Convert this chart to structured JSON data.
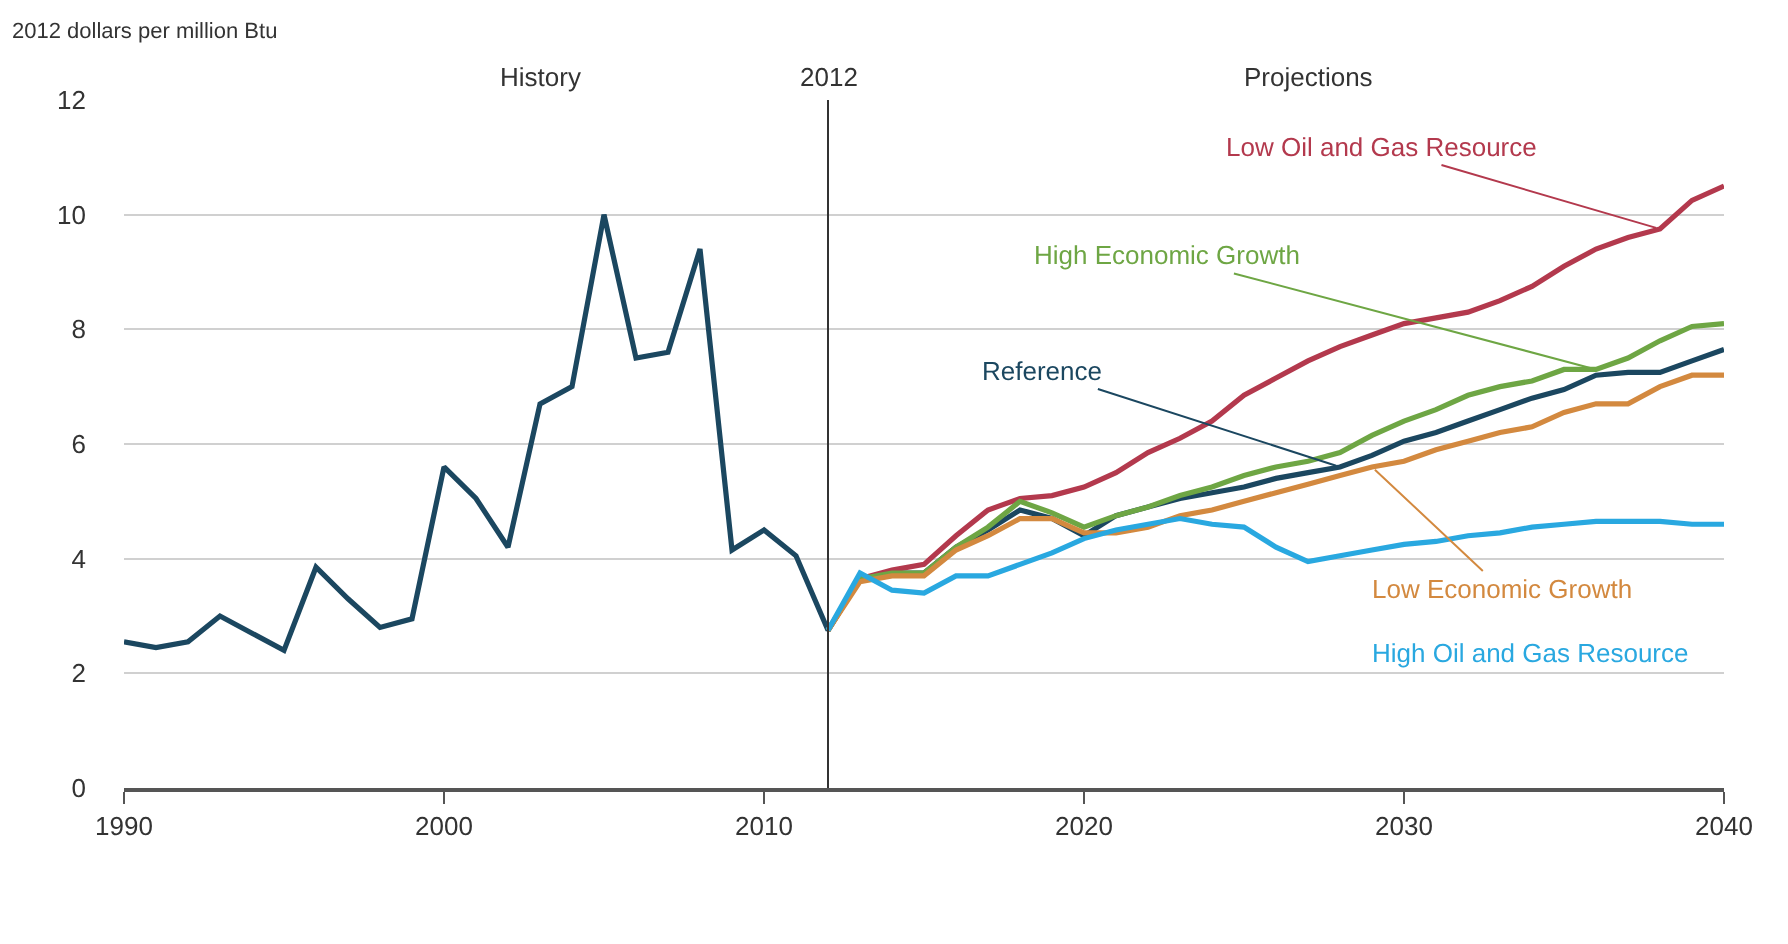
{
  "chart_data": {
    "type": "line",
    "ylabel": "2012 dollars per million Btu",
    "annotations": [
      "History",
      "Projections"
    ],
    "xlim": [
      1990,
      2040
    ],
    "xticks": [
      1990,
      2000,
      2010,
      2020,
      2030,
      2040
    ],
    "ylim": [
      0,
      12
    ],
    "yticks": [
      0,
      2,
      4,
      6,
      8,
      10,
      12
    ],
    "grid": "y",
    "legend": false,
    "marker": "none",
    "line_style": "solid",
    "ref_lines": [
      {
        "axis": "x",
        "value": 2012,
        "label": "2012",
        "color": "#333333"
      }
    ],
    "series": [
      {
        "name": "Reference",
        "color": "#1b4760",
        "x": [
          1990,
          1991,
          1992,
          1993,
          1994,
          1995,
          1996,
          1997,
          1998,
          1999,
          2000,
          2001,
          2002,
          2003,
          2004,
          2005,
          2006,
          2007,
          2008,
          2009,
          2010,
          2011,
          2012,
          2013,
          2014,
          2015,
          2016,
          2017,
          2018,
          2019,
          2020,
          2021,
          2022,
          2023,
          2024,
          2025,
          2026,
          2027,
          2028,
          2029,
          2030,
          2031,
          2032,
          2033,
          2034,
          2035,
          2036,
          2037,
          2038,
          2039,
          2040
        ],
        "values": [
          2.55,
          2.45,
          2.55,
          3.0,
          2.7,
          2.4,
          3.85,
          3.3,
          2.8,
          2.95,
          5.6,
          5.05,
          4.2,
          6.7,
          7.0,
          10.0,
          7.5,
          7.6,
          9.4,
          4.15,
          4.5,
          4.05,
          2.75,
          3.65,
          3.75,
          3.75,
          4.2,
          4.5,
          4.85,
          4.7,
          4.4,
          4.75,
          4.9,
          5.05,
          5.15,
          5.25,
          5.4,
          5.5,
          5.6,
          5.8,
          6.05,
          6.2,
          6.4,
          6.6,
          6.8,
          6.95,
          7.2,
          7.25,
          7.25,
          7.45,
          7.65
        ]
      },
      {
        "name": "Low Oil and Gas Resource",
        "color": "#b3394d",
        "x": [
          2012,
          2013,
          2014,
          2015,
          2016,
          2017,
          2018,
          2019,
          2020,
          2021,
          2022,
          2023,
          2024,
          2025,
          2026,
          2027,
          2028,
          2029,
          2030,
          2031,
          2032,
          2033,
          2034,
          2035,
          2036,
          2037,
          2038,
          2039,
          2040
        ],
        "values": [
          2.75,
          3.65,
          3.8,
          3.9,
          4.4,
          4.85,
          5.05,
          5.1,
          5.25,
          5.5,
          5.85,
          6.1,
          6.4,
          6.85,
          7.15,
          7.45,
          7.7,
          7.9,
          8.1,
          8.2,
          8.3,
          8.5,
          8.75,
          9.1,
          9.4,
          9.6,
          9.75,
          10.25,
          10.5
        ]
      },
      {
        "name": "High Economic Growth",
        "color": "#6ea644",
        "x": [
          2012,
          2013,
          2014,
          2015,
          2016,
          2017,
          2018,
          2019,
          2020,
          2021,
          2022,
          2023,
          2024,
          2025,
          2026,
          2027,
          2028,
          2029,
          2030,
          2031,
          2032,
          2033,
          2034,
          2035,
          2036,
          2037,
          2038,
          2039,
          2040
        ],
        "values": [
          2.75,
          3.65,
          3.75,
          3.75,
          4.2,
          4.55,
          5.0,
          4.8,
          4.55,
          4.75,
          4.9,
          5.1,
          5.25,
          5.45,
          5.6,
          5.7,
          5.85,
          6.15,
          6.4,
          6.6,
          6.85,
          7.0,
          7.1,
          7.3,
          7.3,
          7.5,
          7.8,
          8.05,
          8.1
        ]
      },
      {
        "name": "Low Economic Growth",
        "color": "#d3893f",
        "x": [
          2012,
          2013,
          2014,
          2015,
          2016,
          2017,
          2018,
          2019,
          2020,
          2021,
          2022,
          2023,
          2024,
          2025,
          2026,
          2027,
          2028,
          2029,
          2030,
          2031,
          2032,
          2033,
          2034,
          2035,
          2036,
          2037,
          2038,
          2039,
          2040
        ],
        "values": [
          2.75,
          3.6,
          3.7,
          3.7,
          4.15,
          4.4,
          4.7,
          4.7,
          4.45,
          4.45,
          4.55,
          4.75,
          4.85,
          5.0,
          5.15,
          5.3,
          5.45,
          5.6,
          5.7,
          5.9,
          6.05,
          6.2,
          6.3,
          6.55,
          6.7,
          6.7,
          7.0,
          7.2,
          7.2
        ]
      },
      {
        "name": "High Oil and Gas Resource",
        "color": "#29a8e0",
        "x": [
          2012,
          2013,
          2014,
          2015,
          2016,
          2017,
          2018,
          2019,
          2020,
          2021,
          2022,
          2023,
          2024,
          2025,
          2026,
          2027,
          2028,
          2029,
          2030,
          2031,
          2032,
          2033,
          2034,
          2035,
          2036,
          2037,
          2038,
          2039,
          2040
        ],
        "values": [
          2.75,
          3.75,
          3.45,
          3.4,
          3.7,
          3.7,
          3.9,
          4.1,
          4.35,
          4.5,
          4.6,
          4.7,
          4.6,
          4.55,
          4.2,
          3.95,
          4.05,
          4.15,
          4.25,
          4.3,
          4.4,
          4.45,
          4.55,
          4.6,
          4.65,
          4.65,
          4.65,
          4.6,
          4.6
        ]
      }
    ]
  }
}
